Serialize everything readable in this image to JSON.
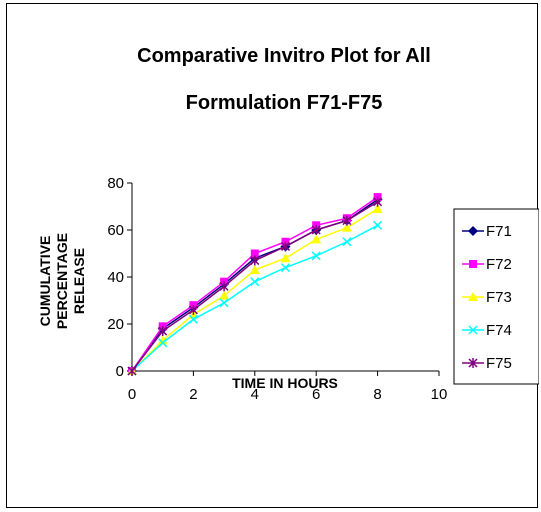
{
  "chart_data": {
    "type": "line",
    "title": [
      "Comparative Invitro Plot for All",
      "Formulation F71-F75"
    ],
    "xlabel": "TIME IN HOURS",
    "ylabel": [
      "CUMULATIVE",
      "PERCENTAGE",
      "RELEASE"
    ],
    "xlim": [
      0,
      10
    ],
    "ylim": [
      0,
      80
    ],
    "xticks": [
      0,
      2,
      4,
      6,
      8,
      10
    ],
    "yticks": [
      0,
      20,
      40,
      60,
      80
    ],
    "grid": false,
    "legend_position": "right",
    "x": [
      0,
      1,
      2,
      3,
      4,
      5,
      6,
      7,
      8
    ],
    "series": [
      {
        "name": "F71",
        "color": "#000080",
        "marker": "diamond",
        "values": [
          0,
          18,
          27,
          37,
          48,
          53,
          60,
          64,
          73
        ]
      },
      {
        "name": "F72",
        "color": "#ff00ff",
        "marker": "square",
        "values": [
          0,
          19,
          28,
          38,
          50,
          55,
          62,
          65,
          74
        ]
      },
      {
        "name": "F73",
        "color": "#ffff00",
        "marker": "triangle",
        "values": [
          0,
          13,
          24,
          32,
          43,
          48,
          56,
          61,
          69
        ]
      },
      {
        "name": "F74",
        "color": "#00ffff",
        "marker": "x",
        "values": [
          0,
          12,
          22,
          29,
          38,
          44,
          49,
          55,
          62
        ]
      },
      {
        "name": "F75",
        "color": "#800080",
        "marker": "star",
        "values": [
          0,
          17,
          26,
          36,
          47,
          53,
          60,
          64,
          72
        ]
      }
    ]
  }
}
